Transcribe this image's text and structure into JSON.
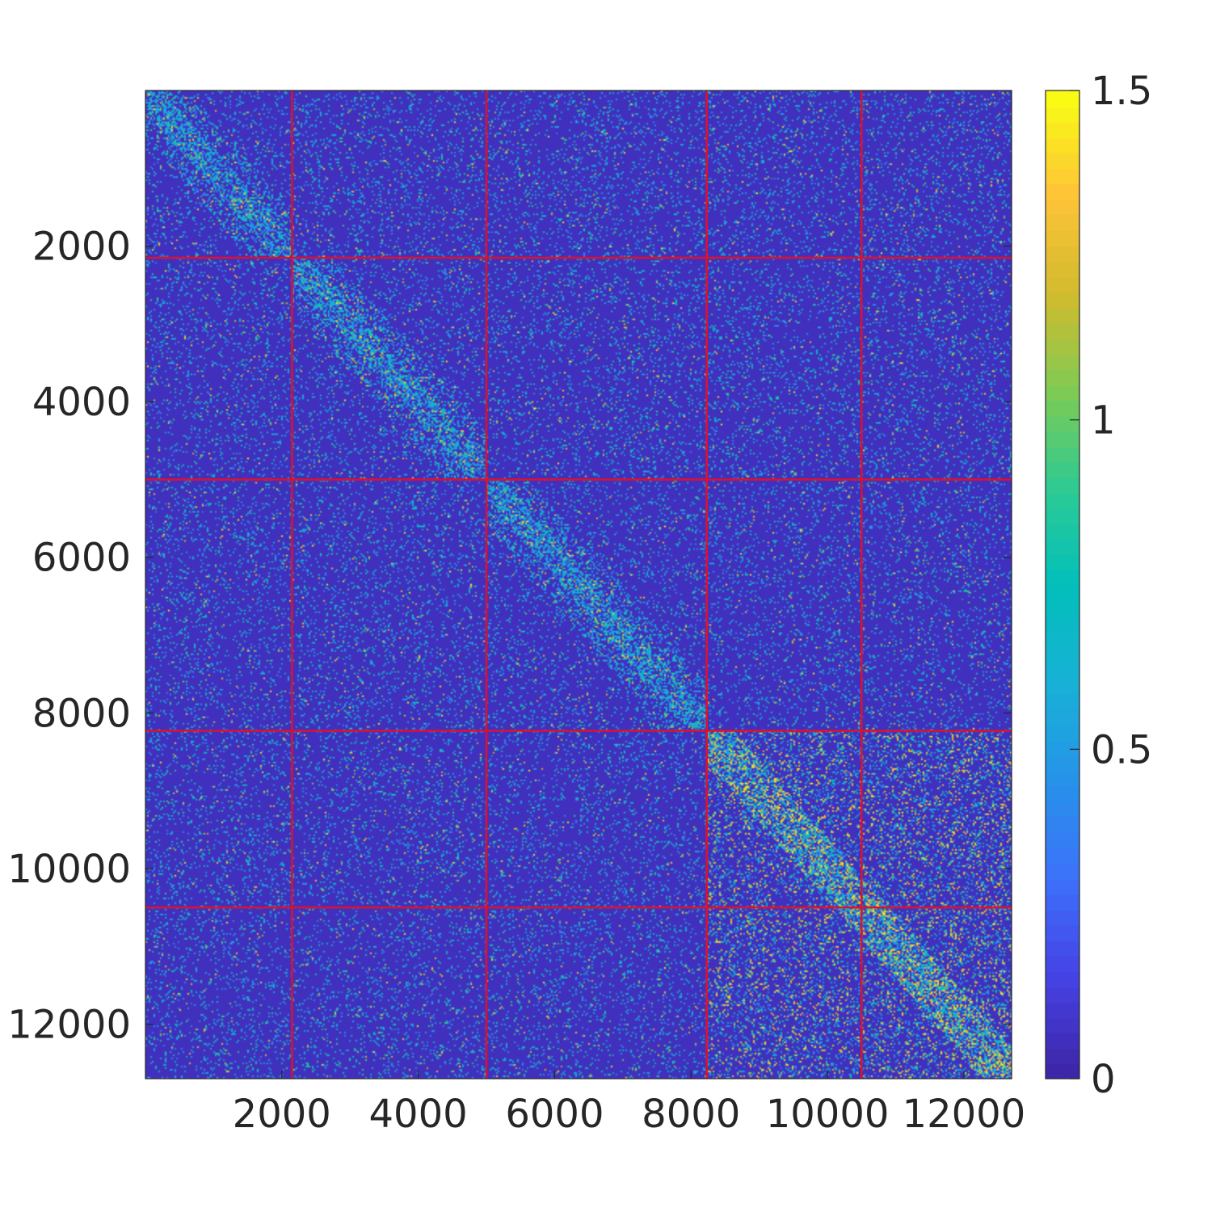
{
  "chart_data": {
    "type": "heatmap",
    "title": "",
    "xlabel": "",
    "ylabel": "",
    "xlim": [
      1,
      12700
    ],
    "ylim": [
      1,
      12700
    ],
    "x_ticks": [
      2000,
      4000,
      6000,
      8000,
      10000,
      12000
    ],
    "x_tick_labels": [
      "2000",
      "4000",
      "6000",
      "8000",
      "10000",
      "12000"
    ],
    "y_ticks": [
      2000,
      4000,
      6000,
      8000,
      10000,
      12000
    ],
    "y_tick_labels": [
      "2000",
      "4000",
      "6000",
      "8000",
      "10000",
      "12000"
    ],
    "y_direction": "reverse",
    "block_boundaries": [
      2150,
      5000,
      8230,
      10500
    ],
    "block_boundary_color": "#e0102a",
    "colorbar": {
      "colormap": "parula",
      "clim": [
        0,
        1.5
      ],
      "ticks": [
        0,
        0.5,
        1,
        1.5
      ],
      "tick_labels": [
        "0",
        "0.5",
        "1",
        "1.5"
      ],
      "placement": "right"
    },
    "background_value": 0.05
  }
}
